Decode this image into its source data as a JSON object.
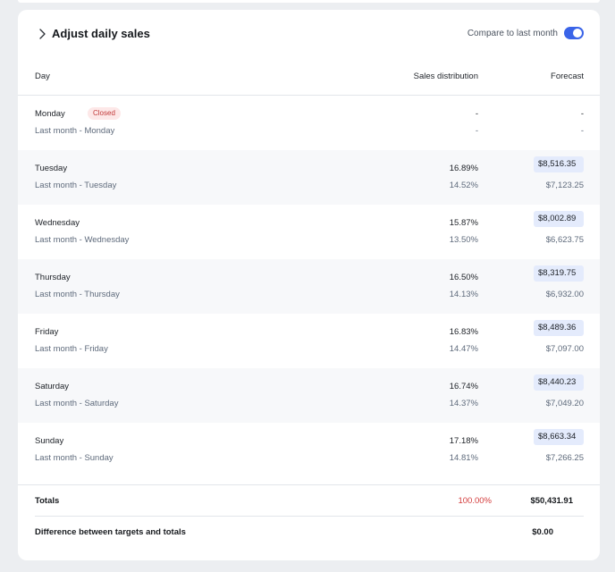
{
  "header": {
    "title": "Adjust daily sales",
    "compare_label": "Compare to last month",
    "compare_enabled": true
  },
  "columns": {
    "day": "Day",
    "distribution": "Sales distribution",
    "forecast": "Forecast"
  },
  "colors": {
    "accent": "#3a64e8",
    "closed_badge_bg": "#fde8e8",
    "closed_badge_text": "#c23a3a",
    "total_percent": "#d33b3b",
    "forecast_input_bg": "#e4ebfc"
  },
  "rows": [
    {
      "day": "Monday",
      "badge": "Closed",
      "distribution": "-",
      "forecast": "-",
      "last_month_label": "Last month - Monday",
      "last_month_distribution": "-",
      "last_month_forecast": "-"
    },
    {
      "day": "Tuesday",
      "distribution": "16.89%",
      "forecast": "$8,516.35",
      "last_month_label": "Last month - Tuesday",
      "last_month_distribution": "14.52%",
      "last_month_forecast": "$7,123.25"
    },
    {
      "day": "Wednesday",
      "distribution": "15.87%",
      "forecast": "$8,002.89",
      "last_month_label": "Last month - Wednesday",
      "last_month_distribution": "13.50%",
      "last_month_forecast": "$6,623.75"
    },
    {
      "day": "Thursday",
      "distribution": "16.50%",
      "forecast": "$8,319.75",
      "last_month_label": "Last month - Thursday",
      "last_month_distribution": "14.13%",
      "last_month_forecast": "$6,932.00"
    },
    {
      "day": "Friday",
      "distribution": "16.83%",
      "forecast": "$8,489.36",
      "last_month_label": "Last month - Friday",
      "last_month_distribution": "14.47%",
      "last_month_forecast": "$7,097.00"
    },
    {
      "day": "Saturday",
      "distribution": "16.74%",
      "forecast": "$8,440.23",
      "last_month_label": "Last month - Saturday",
      "last_month_distribution": "14.37%",
      "last_month_forecast": "$7,049.20"
    },
    {
      "day": "Sunday",
      "distribution": "17.18%",
      "forecast": "$8,663.34",
      "last_month_label": "Last month - Sunday",
      "last_month_distribution": "14.81%",
      "last_month_forecast": "$7,266.25"
    }
  ],
  "totals": {
    "label": "Totals",
    "percent": "100.00%",
    "amount": "$50,431.91"
  },
  "difference": {
    "label": "Difference between targets and totals",
    "amount": "$0.00"
  }
}
